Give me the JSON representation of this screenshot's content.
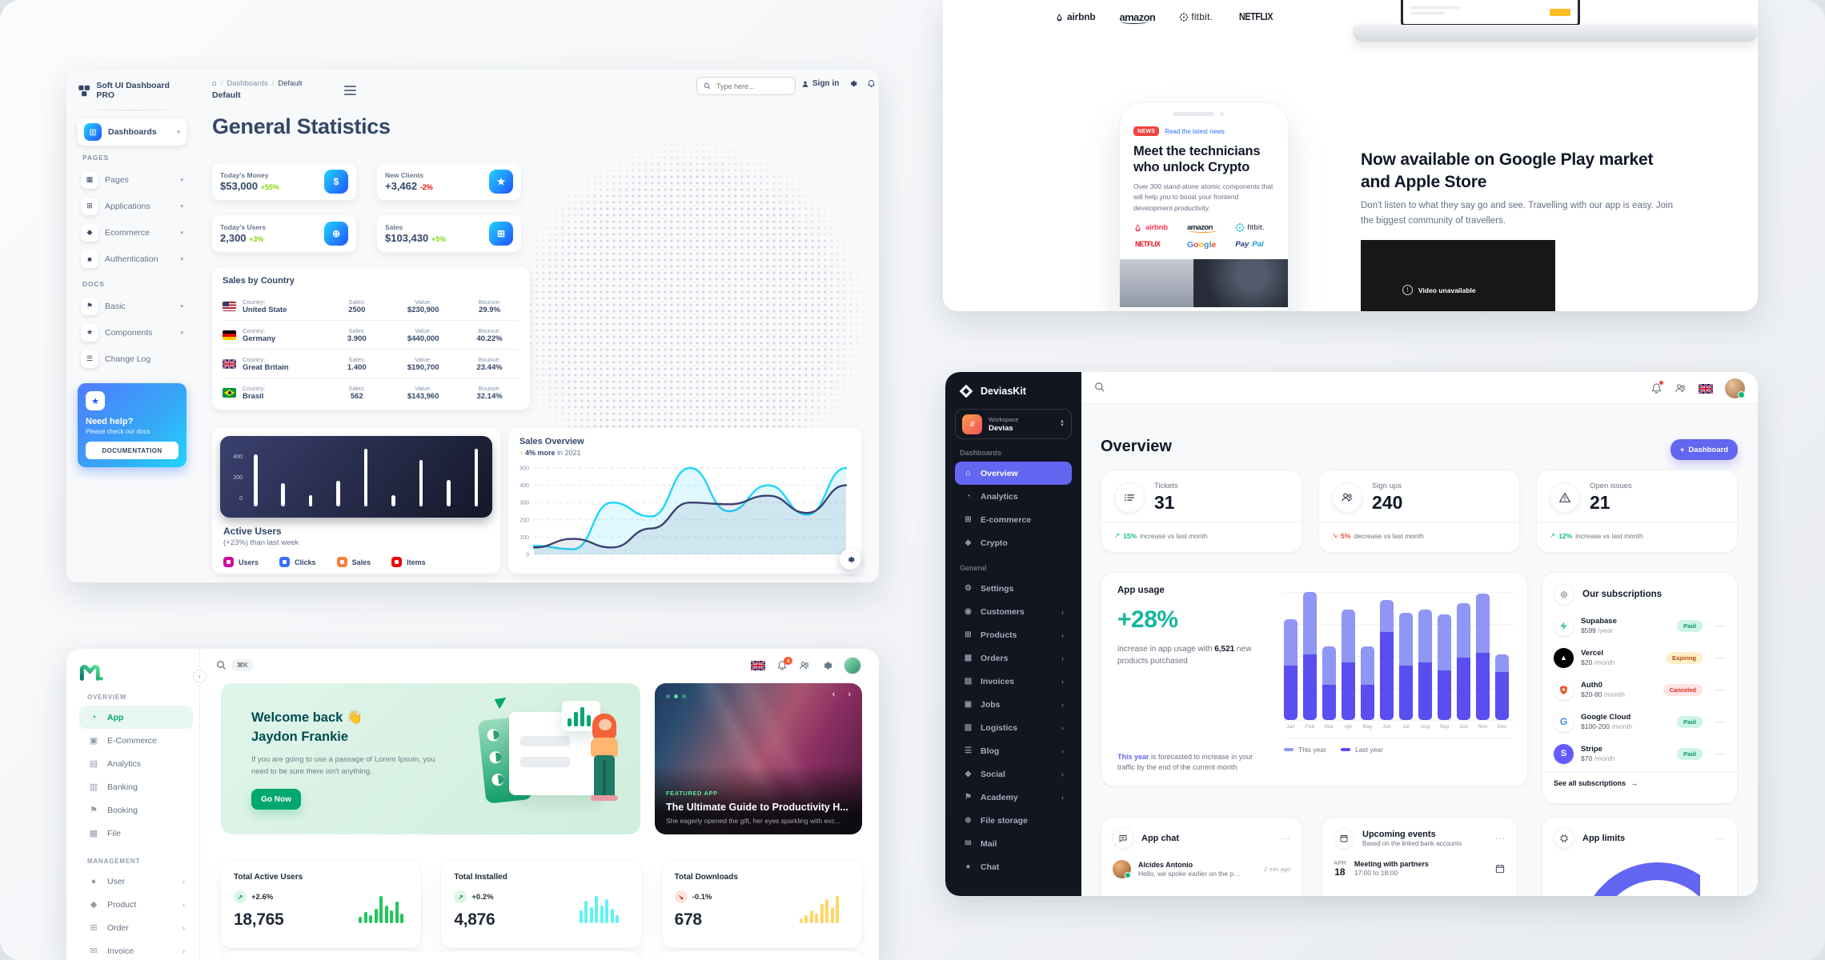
{
  "softui": {
    "brand": "Soft UI Dashboard PRO",
    "sidebar": {
      "dashboards": "Dashboards",
      "pages_label": "PAGES",
      "pages": [
        "Pages",
        "Applications",
        "Ecommerce",
        "Authentication"
      ],
      "docs_label": "DOCS",
      "docs": [
        "Basic",
        "Components",
        "Change Log"
      ],
      "help_title": "Need help?",
      "help_sub": "Please check our docs",
      "help_btn": "DOCUMENTATION"
    },
    "breadcrumb": {
      "section": "Dashboards",
      "page": "Default",
      "current": "Default"
    },
    "topbar": {
      "search_placeholder": "Type here...",
      "signin": "Sign in"
    },
    "title": "General Statistics",
    "stats": [
      {
        "label": "Today's Money",
        "value": "$53,000",
        "delta": "+55%",
        "up": true,
        "icon": "coin-icon"
      },
      {
        "label": "New Clients",
        "value": "+3,462",
        "delta": "-2%",
        "up": false,
        "icon": "trophy-icon"
      },
      {
        "label": "Today's Users",
        "value": "2,300",
        "delta": "+3%",
        "up": true,
        "icon": "globe-icon"
      },
      {
        "label": "Sales",
        "value": "$103,430",
        "delta": "+5%",
        "up": true,
        "icon": "cart-icon"
      }
    ],
    "sales_by_country": {
      "title": "Sales by Country",
      "labels": {
        "country": "Country:",
        "sales": "Sales:",
        "value": "Value:",
        "bounce": "Bounce:"
      },
      "rows": [
        {
          "flag": "us",
          "country": "United State",
          "sales": "2500",
          "value": "$230,900",
          "bounce": "29.9%"
        },
        {
          "flag": "de",
          "country": "Germany",
          "sales": "3.900",
          "value": "$440,000",
          "bounce": "40.22%"
        },
        {
          "flag": "gb",
          "country": "Great Britain",
          "sales": "1.400",
          "value": "$190,700",
          "bounce": "23.44%"
        },
        {
          "flag": "br",
          "country": "Brasil",
          "sales": "562",
          "value": "$143,960",
          "bounce": "32.14%"
        }
      ]
    },
    "active_users": {
      "title": "Active Users",
      "subtitle": "(+23%) than last week",
      "yticks": [
        "400",
        "200",
        "0"
      ],
      "bars": [
        450,
        200,
        100,
        220,
        500,
        100,
        400,
        230,
        500
      ],
      "legend": [
        {
          "label": "Users",
          "color": "#cb0c9f"
        },
        {
          "label": "Clicks",
          "color": "#3b6ff6"
        },
        {
          "label": "Sales",
          "color": "#f5803e"
        },
        {
          "label": "Items",
          "color": "#ea0606"
        }
      ]
    },
    "sales_overview": {
      "title": "Sales Overview",
      "delta_arrow": "↑",
      "delta_bold": "4% more",
      "delta_rest": "in 2021",
      "yticks": [
        500,
        400,
        300,
        200,
        100,
        0
      ],
      "series": [
        {
          "name": "cyan",
          "color": "#21d4fd",
          "values": [
            50,
            30,
            300,
            220,
            500,
            250,
            400,
            230,
            500
          ]
        },
        {
          "name": "navy",
          "color": "#3a416f",
          "values": [
            40,
            90,
            40,
            150,
            300,
            290,
            340,
            240,
            400
          ]
        }
      ]
    }
  },
  "landing": {
    "header_logos": [
      "airbnb",
      "amazon",
      "fitbit",
      "NETFLIX"
    ],
    "phone": {
      "badge": "NEWS",
      "link": "Read the latest news",
      "title": "Meet the technicians who unlock Crypto",
      "body": "Over 300 stand-alone atomic components that will help you to boost your frontend development productivity.",
      "logos": [
        "airbnb",
        "amazon",
        "fitbit",
        "NETFLIX",
        "Google",
        "PayPal"
      ]
    },
    "promo": {
      "title": "Now available on Google Play market and Apple Store",
      "body": "Don't listen to what they say go and see. Travelling with our app is easy. Join the biggest community of travellers.",
      "video_text": "Video unavailable"
    }
  },
  "minimal": {
    "nav": {
      "overview_label": "OVERVIEW",
      "overview": [
        "App",
        "E-Commerce",
        "Analytics",
        "Banking",
        "Booking",
        "File"
      ],
      "management_label": "MANAGEMENT",
      "management": [
        "User",
        "Product",
        "Order",
        "Invoice"
      ]
    },
    "topbar": {
      "shortcut": "⌘K",
      "bell_badge": "4"
    },
    "welcome": {
      "title_line1": "Welcome back 👋",
      "title_line2": "Jaydon Frankie",
      "body": "If you are going to use a passage of Lorem Ipsum, you need to be sure there isn't anything.",
      "cta": "Go Now"
    },
    "featured": {
      "tag": "FEATURED APP",
      "title": "The Ultimate Guide to Productivity H...",
      "subtitle": "She eagerly opened the gift, her eyes sparkling with exc..."
    },
    "stats": [
      {
        "label": "Total Active Users",
        "delta": "+2.6%",
        "up": true,
        "value": "18,765",
        "color": "#22c55e",
        "spark": [
          8,
          14,
          10,
          18,
          34,
          22,
          16,
          27,
          12
        ]
      },
      {
        "label": "Total Installed",
        "delta": "+0.2%",
        "up": true,
        "value": "4,876",
        "color": "#61f3f3",
        "spark": [
          16,
          28,
          20,
          34,
          22,
          30,
          18,
          10
        ]
      },
      {
        "label": "Total Downloads",
        "delta": "-0.1%",
        "up": false,
        "value": "678",
        "color": "#ffd666",
        "spark": [
          6,
          10,
          16,
          12,
          24,
          30,
          20,
          34
        ]
      }
    ]
  },
  "devias": {
    "brand": "DeviasKit",
    "workspace": {
      "label": "Workspace",
      "name": "Devias"
    },
    "nav": {
      "dash_label": "Dashboards",
      "dash": [
        {
          "label": "Overview",
          "active": true
        },
        {
          "label": "Analytics"
        },
        {
          "label": "E-commerce"
        },
        {
          "label": "Crypto"
        }
      ],
      "gen_label": "General",
      "gen": [
        {
          "label": "Settings"
        },
        {
          "label": "Customers",
          "chev": true
        },
        {
          "label": "Products",
          "chev": true
        },
        {
          "label": "Orders",
          "chev": true
        },
        {
          "label": "Invoices",
          "chev": true
        },
        {
          "label": "Jobs",
          "chev": true
        },
        {
          "label": "Logistics",
          "chev": true
        },
        {
          "label": "Blog",
          "chev": true
        },
        {
          "label": "Social",
          "chev": true
        },
        {
          "label": "Academy",
          "chev": true
        },
        {
          "label": "File storage"
        },
        {
          "label": "Mail"
        },
        {
          "label": "Chat"
        }
      ]
    },
    "page_title": "Overview",
    "new_dashboard_btn": "Dashboard",
    "stats": [
      {
        "label": "Tickets",
        "value": "31",
        "icon": "list",
        "pct": "15%",
        "rest": "increase vs last month",
        "up": true
      },
      {
        "label": "Sign ups",
        "value": "240",
        "icon": "users",
        "pct": "5%",
        "rest": "decrease vs last month",
        "up": false
      },
      {
        "label": "Open issues",
        "value": "21",
        "icon": "warning",
        "pct": "12%",
        "rest": "increase vs last month",
        "up": true
      }
    ],
    "app_usage": {
      "title": "App usage",
      "big": "+28%",
      "desc_pre": "increase in app usage with ",
      "desc_bold": "6,521",
      "desc_post": " new products purchased",
      "note_accent": "This year",
      "note_rest": " is forecasted to increase in your traffic by the end of the current month",
      "months": [
        "Jan",
        "Feb",
        "Mar",
        "Apr",
        "May",
        "Jun",
        "Jul",
        "Aug",
        "Sep",
        "Oct",
        "Nov",
        "Dec"
      ],
      "last_year": [
        34,
        41,
        22,
        36,
        22,
        55,
        34,
        36,
        31,
        39,
        42,
        30
      ],
      "this_year": [
        29,
        39,
        24,
        33,
        24,
        20,
        33,
        33,
        35,
        34,
        37,
        11
      ],
      "legend": [
        {
          "label": "This year",
          "color": "#8f96f3"
        },
        {
          "label": "Last year",
          "color": "#5a4ef0"
        }
      ]
    },
    "subscriptions": {
      "title": "Our subscriptions",
      "rows": [
        {
          "logo": "supabase",
          "name": "Supabase",
          "price": "$599",
          "period": "/year",
          "badge": "Paid",
          "type": "paid"
        },
        {
          "logo": "vercel",
          "name": "Vercel",
          "price": "$20",
          "period": "/month",
          "badge": "Expiring",
          "type": "expiring"
        },
        {
          "logo": "auth0",
          "name": "Auth0",
          "price": "$20-80",
          "period": "/month",
          "badge": "Canceled",
          "type": "canceled"
        },
        {
          "logo": "gcloud",
          "name": "Google Cloud",
          "price": "$100-200",
          "period": "/month",
          "badge": "Paid",
          "type": "paid"
        },
        {
          "logo": "stripe",
          "name": "Stripe",
          "price": "$70",
          "period": "/month",
          "badge": "Paid",
          "type": "paid"
        }
      ],
      "footer": "See all subscriptions",
      "footer_arrow": "→"
    },
    "chat": {
      "title": "App chat",
      "name": "Alcides Antonio",
      "message": "Hello, we spoke earlier on the phone",
      "time": "2 min ago"
    },
    "events": {
      "title": "Upcoming events",
      "subtitle": "Based on the linked bank accounts",
      "month": "APR",
      "day": "18",
      "name": "Meeting with partners",
      "time": "17:00 to 18:00"
    },
    "limits": {
      "title": "App limits"
    }
  }
}
